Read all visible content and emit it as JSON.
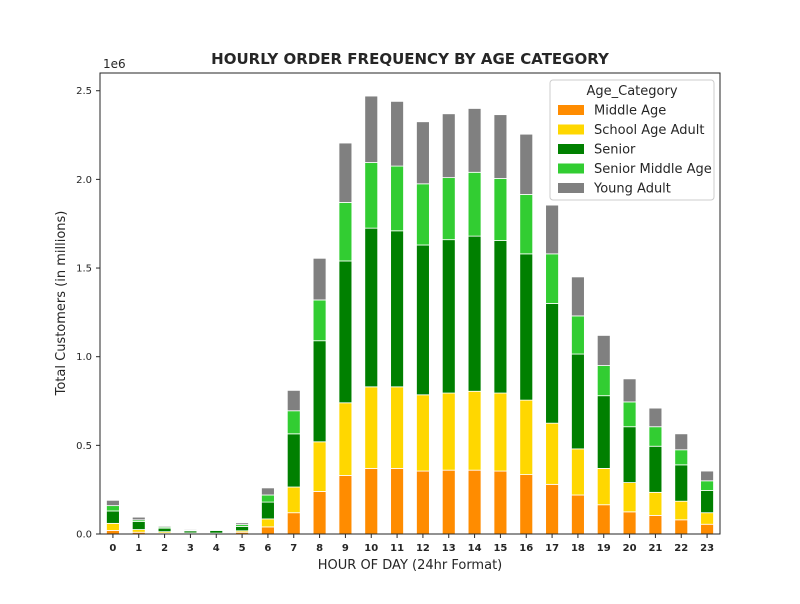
{
  "chart_data": {
    "type": "bar",
    "stacked": true,
    "title": "HOURLY ORDER FREQUENCY BY AGE CATEGORY",
    "xlabel": "HOUR OF DAY (24hr Format)",
    "ylabel": "Total Customers (in millions)",
    "y_offset_label": "1e6",
    "ylim": [
      0,
      2.6
    ],
    "yticks": [
      "0.0",
      "0.5",
      "1.0",
      "1.5",
      "2.0",
      "2.5"
    ],
    "grid": false,
    "legend_placement": "top-right",
    "legend_title": "Age_Category",
    "categories": [
      "0",
      "1",
      "2",
      "3",
      "4",
      "5",
      "6",
      "7",
      "8",
      "9",
      "10",
      "11",
      "12",
      "13",
      "14",
      "15",
      "16",
      "17",
      "18",
      "19",
      "20",
      "21",
      "22",
      "23"
    ],
    "series": [
      {
        "name": "Middle Age",
        "color": "#ff8c00",
        "values": [
          0.02,
          0.01,
          0.005,
          0.003,
          0.003,
          0.01,
          0.04,
          0.12,
          0.24,
          0.33,
          0.37,
          0.37,
          0.355,
          0.36,
          0.36,
          0.355,
          0.335,
          0.28,
          0.22,
          0.165,
          0.125,
          0.105,
          0.08,
          0.055
        ]
      },
      {
        "name": "School Age Adult",
        "color": "#ffd700",
        "values": [
          0.04,
          0.015,
          0.008,
          0.003,
          0.002,
          0.008,
          0.045,
          0.145,
          0.28,
          0.41,
          0.46,
          0.46,
          0.43,
          0.435,
          0.445,
          0.44,
          0.42,
          0.345,
          0.26,
          0.205,
          0.165,
          0.13,
          0.105,
          0.065
        ]
      },
      {
        "name": "Senior",
        "color": "#008000",
        "values": [
          0.07,
          0.045,
          0.02,
          0.012,
          0.015,
          0.025,
          0.095,
          0.3,
          0.57,
          0.8,
          0.895,
          0.88,
          0.845,
          0.865,
          0.875,
          0.86,
          0.825,
          0.675,
          0.535,
          0.41,
          0.315,
          0.26,
          0.205,
          0.125
        ]
      },
      {
        "name": "Senior Middle Age",
        "color": "#32cd32",
        "values": [
          0.03,
          0.01,
          0.007,
          0.004,
          0.004,
          0.01,
          0.04,
          0.13,
          0.23,
          0.33,
          0.37,
          0.365,
          0.345,
          0.35,
          0.36,
          0.35,
          0.335,
          0.28,
          0.215,
          0.17,
          0.14,
          0.11,
          0.085,
          0.055
        ]
      },
      {
        "name": "Young Adult",
        "color": "#808080",
        "values": [
          0.03,
          0.015,
          0.006,
          0.005,
          0.004,
          0.01,
          0.04,
          0.115,
          0.235,
          0.335,
          0.375,
          0.365,
          0.35,
          0.36,
          0.36,
          0.36,
          0.34,
          0.275,
          0.22,
          0.17,
          0.13,
          0.105,
          0.09,
          0.055
        ]
      }
    ]
  }
}
